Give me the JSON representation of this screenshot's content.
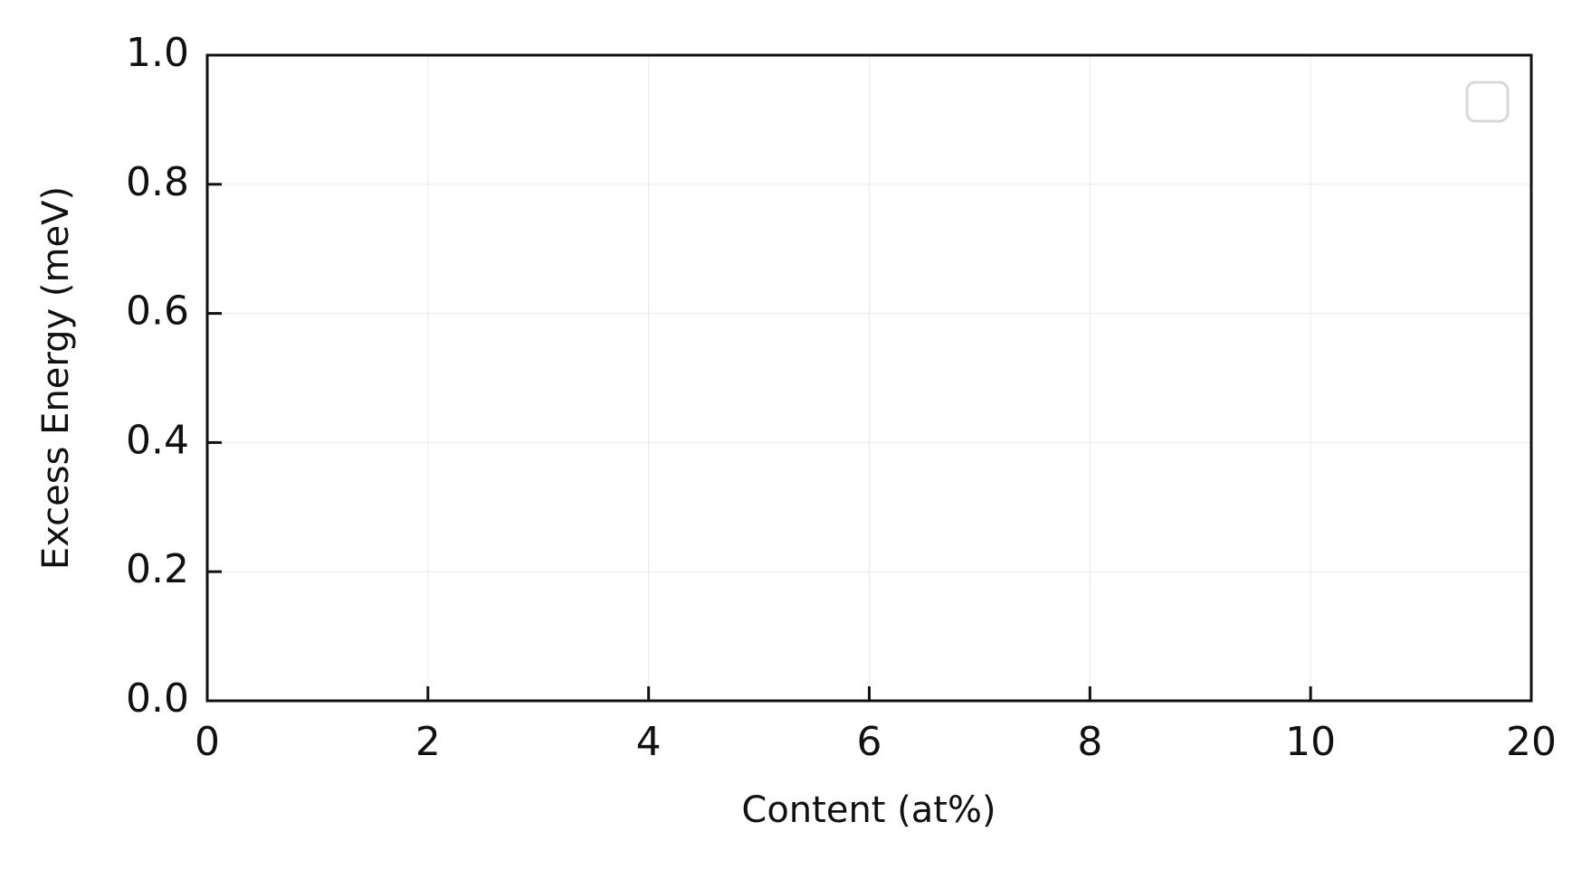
{
  "chart_data": {
    "type": "line",
    "xlabel": "Content (at%)",
    "ylabel": "Excess Energy (meV)",
    "series": [],
    "xlim": [
      0,
      20
    ],
    "xticks": [
      0,
      2,
      4,
      6,
      8,
      10,
      20
    ],
    "x_tick_spacing": "even",
    "ylim": [
      0,
      1
    ],
    "yticks": [
      {
        "value": 0,
        "label": "0.0"
      },
      {
        "value": 0.2,
        "label": "0.2"
      },
      {
        "value": 0.4,
        "label": "0.4"
      },
      {
        "value": 0.6,
        "label": "0.6"
      },
      {
        "value": 0.8,
        "label": "0.8"
      },
      {
        "value": 1,
        "label": "1.0"
      }
    ],
    "grid": true,
    "legend": "upper right"
  }
}
